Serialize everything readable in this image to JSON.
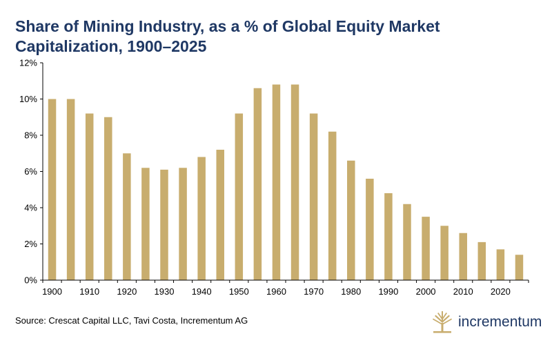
{
  "chart_data": {
    "type": "bar",
    "title": "Share of Mining Industry, as a % of Global Equity Market Capitalization, 1900–2025",
    "categories": [
      1900,
      1905,
      1910,
      1915,
      1920,
      1925,
      1930,
      1935,
      1940,
      1945,
      1950,
      1955,
      1960,
      1965,
      1970,
      1975,
      1980,
      1985,
      1990,
      1995,
      2000,
      2005,
      2010,
      2015,
      2020,
      2025
    ],
    "values": [
      10.0,
      10.0,
      9.2,
      9.0,
      7.0,
      6.2,
      6.1,
      6.2,
      6.8,
      7.2,
      9.2,
      10.6,
      10.8,
      10.8,
      9.2,
      8.2,
      6.6,
      5.6,
      4.8,
      4.2,
      3.5,
      3.0,
      2.6,
      2.1,
      1.7,
      1.4
    ],
    "x_tick_labels": [
      "1900",
      "1910",
      "1920",
      "1930",
      "1940",
      "1950",
      "1960",
      "1970",
      "1980",
      "1990",
      "2000",
      "2010",
      "2020"
    ],
    "y_tick_labels": [
      "0%",
      "2%",
      "4%",
      "6%",
      "8%",
      "10%",
      "12%"
    ],
    "ylim": [
      0,
      12
    ],
    "y_unit": "%",
    "xlabel": "",
    "ylabel": "",
    "grid": false,
    "legend": "none",
    "bar_color": "#c8ad6e"
  },
  "footer": {
    "source": "Source: Crescat Capital LLC, Tavi Costa, Incrementum AG"
  },
  "logo": {
    "text": "incrementum",
    "icon": "tree-logo-icon",
    "color": "#1f3864",
    "mark_color": "#c8ad6e"
  }
}
